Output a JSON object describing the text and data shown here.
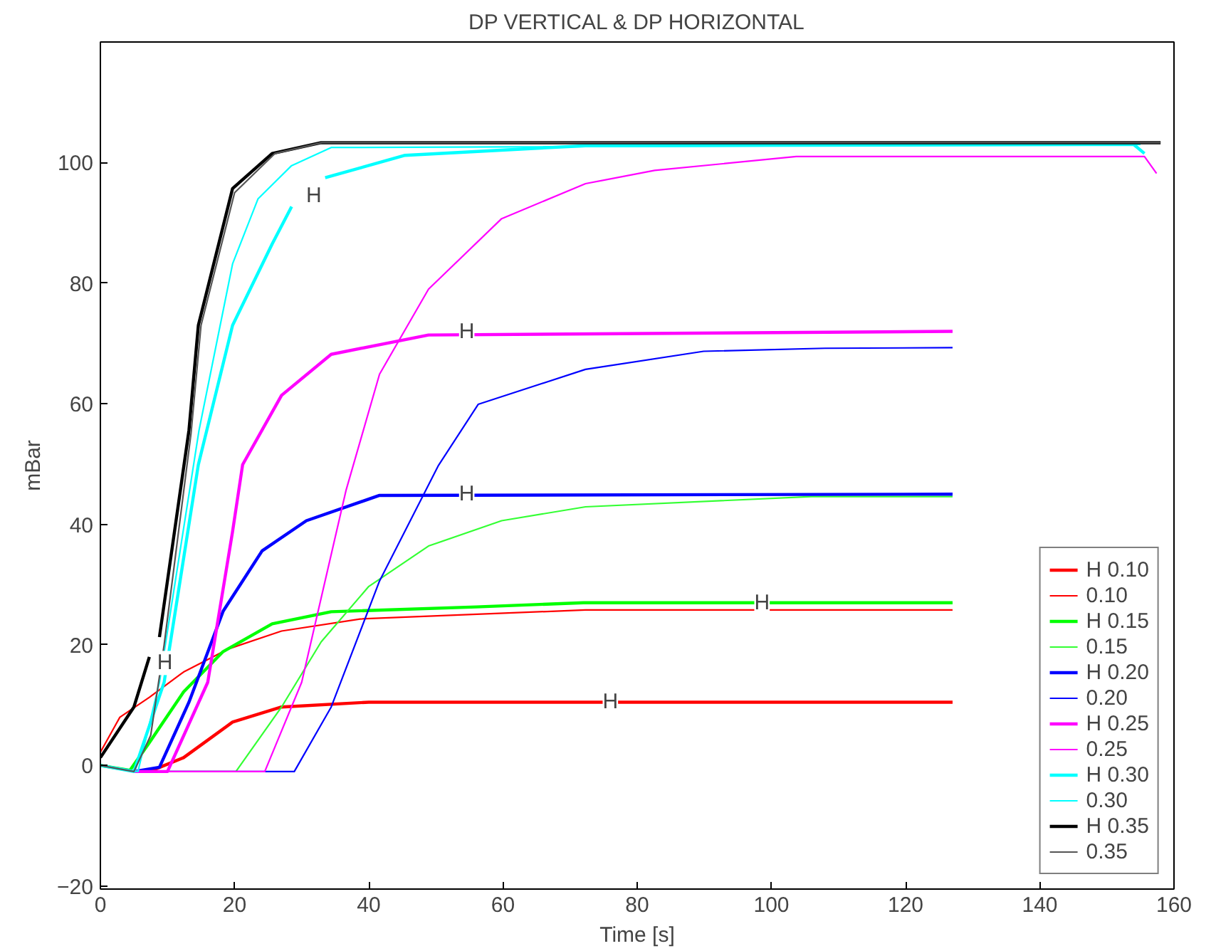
{
  "chart_data": {
    "type": "line",
    "title": "DP VERTICAL & DP HORIZONTAL",
    "xlabel": "Time [s]",
    "ylabel": "mBar",
    "xlim": [
      0,
      160
    ],
    "ylim": [
      -20.5,
      120
    ],
    "xticks": [
      0,
      20,
      40,
      60,
      80,
      100,
      120,
      140,
      160
    ],
    "yticks": [
      -20,
      0,
      20,
      40,
      60,
      80,
      100
    ],
    "grid": false,
    "legend": "bottom right",
    "line_style": "solid",
    "series": [
      {
        "name": "H 0.10",
        "color": "#ff0000",
        "x": [
          7.3,
          12.4,
          19.7,
          27,
          40,
          127
        ],
        "values": [
          -1,
          1.3,
          7.2,
          9.7,
          10.5,
          10.5
        ]
      },
      {
        "name": "0.10",
        "color": "#ff0000",
        "x": [
          0,
          2.9,
          7.3,
          12.4,
          19,
          27,
          38.7,
          72.3,
          127
        ],
        "values": [
          2.2,
          8,
          11.3,
          15.5,
          19.3,
          22.3,
          24.3,
          25.8,
          25.8
        ]
      },
      {
        "name": "H 0.15",
        "color": "#00ff00",
        "x": [
          0,
          4.4,
          7.3,
          12.4,
          18.3,
          25.6,
          34.4,
          56,
          72,
          127
        ],
        "values": [
          0,
          -0.8,
          3.8,
          12.2,
          18.9,
          23.5,
          25.5,
          26.3,
          27,
          27
        ]
      },
      {
        "name": "0.15",
        "color": "#33ff33",
        "x": [
          5,
          20.2,
          27,
          32.9,
          40,
          48.9,
          59.8,
          72.3,
          106,
          127
        ],
        "values": [
          -1,
          -1,
          9.7,
          20.5,
          29.7,
          36.4,
          40.6,
          42.9,
          44.6,
          44.6
        ]
      },
      {
        "name": "H 0.20",
        "color": "#0000ff",
        "x": [
          5,
          8.8,
          13.2,
          18.3,
          24.1,
          30.7,
          41.6,
          127
        ],
        "values": [
          -1,
          -0.3,
          10.5,
          25.6,
          35.6,
          40.6,
          44.8,
          45
        ]
      },
      {
        "name": "0.20",
        "color": "#0000ff",
        "x": [
          5,
          28.9,
          34.4,
          41.6,
          50.4,
          56.3,
          72.3,
          89.9,
          108,
          127
        ],
        "values": [
          -1,
          -1,
          9.7,
          30.6,
          49.8,
          59.9,
          65.7,
          68.7,
          69.2,
          69.3
        ]
      },
      {
        "name": "H 0.25",
        "color": "#ff00ff",
        "x": [
          5,
          10,
          16,
          19.7,
          21.2,
          27,
          34.4,
          48.9,
          127
        ],
        "values": [
          -1,
          -1,
          13.8,
          38.8,
          49.9,
          61.4,
          68.2,
          71.4,
          72
        ]
      },
      {
        "name": "0.25",
        "color": "#ff00ff",
        "x": [
          5,
          24.5,
          30,
          36.6,
          41.6,
          48.9,
          59.8,
          72.3,
          82.6,
          103.7,
          155.6,
          157.4
        ],
        "values": [
          -1,
          -1,
          13.8,
          45.6,
          64.9,
          79,
          90.7,
          96.5,
          98.7,
          101,
          101,
          98.2
        ]
      },
      {
        "name": "H 0.30",
        "color": "#00ffff",
        "x": [
          0,
          5,
          9.5,
          14.6,
          19.7,
          25.6,
          28.5,
          31,
          33.5,
          45.4,
          72.3,
          154,
          155.6
        ],
        "values": [
          0,
          -1,
          13.8,
          49.9,
          73,
          86.5,
          92.7,
          null,
          97.5,
          101.2,
          102.8,
          103,
          101.5
        ]
      },
      {
        "name": "0.30",
        "color": "#00ffff",
        "x": [
          0,
          5.6,
          8.8,
          14.7,
          19.7,
          23.5,
          28.5,
          34.4,
          155
        ],
        "values": [
          0,
          -1,
          13.8,
          55.6,
          83.2,
          94,
          99.5,
          102.5,
          103
        ]
      },
      {
        "name": "H 0.35",
        "color": "#000000",
        "x": [
          0,
          5,
          7.3,
          8,
          8.8,
          13.2,
          14.6,
          19.7,
          25.6,
          32.9,
          158
        ],
        "values": [
          1.3,
          9.7,
          18,
          null,
          21.3,
          55.6,
          73,
          95.7,
          101.5,
          103.3,
          103.3
        ]
      },
      {
        "name": "0.35",
        "color": "#555555",
        "x": [
          0,
          5,
          7.5,
          9.5,
          13.5,
          15,
          20,
          26,
          33,
          158
        ],
        "values": [
          0,
          -1,
          5,
          20,
          55,
          73,
          95,
          101.5,
          103.3,
          103.3
        ]
      }
    ],
    "annotations": [
      {
        "text": "H",
        "x": 31.8,
        "y": 94.5
      },
      {
        "text": "H",
        "x": 54.6,
        "y": 72
      },
      {
        "text": "H",
        "x": 54.6,
        "y": 45
      },
      {
        "text": "H",
        "x": 98.6,
        "y": 27
      },
      {
        "text": "H",
        "x": 76,
        "y": 10.5
      },
      {
        "text": "H",
        "x": 9.6,
        "y": 17
      }
    ]
  }
}
